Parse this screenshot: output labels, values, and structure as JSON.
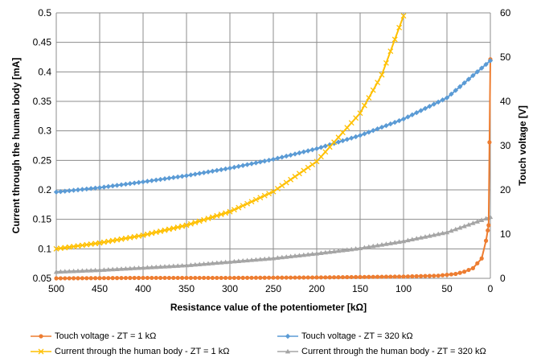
{
  "chart_data": {
    "type": "line",
    "xlabel": "Resistance value of the potentiometer [kΩ]",
    "ylabel_left": "Current  through the human body [mA]",
    "ylabel_right": "Touch voltage [V]",
    "xlim": [
      500,
      0
    ],
    "ylim_left": [
      0.05,
      0.5
    ],
    "ylim_right": [
      0,
      60
    ],
    "x_ticks": [
      "500",
      "450",
      "400",
      "350",
      "300",
      "250",
      "200",
      "150",
      "100",
      "50",
      "0"
    ],
    "y_left_ticks": [
      "0.05",
      "0.1",
      "0.15",
      "0.2",
      "0.25",
      "0.3",
      "0.35",
      "0.4",
      "0.45",
      "0.5"
    ],
    "y_right_ticks": [
      "0",
      "10",
      "20",
      "30",
      "40",
      "50",
      "60"
    ],
    "grid": true,
    "legend_position": "bottom",
    "series": [
      {
        "name": "Touch voltage - ZT = 1 kΩ",
        "axis": "right",
        "color": "#ed7d31",
        "marker": "circle",
        "x": [
          500,
          400,
          300,
          200,
          150,
          100,
          80,
          60,
          50,
          40,
          30,
          20,
          10,
          5,
          2,
          0
        ],
        "y": [
          0.0,
          0.1,
          0.1,
          0.2,
          0.3,
          0.4,
          0.5,
          0.6,
          0.8,
          1.0,
          1.5,
          2.3,
          4.5,
          8.5,
          12.0,
          49.5
        ]
      },
      {
        "name": "Touch voltage - ZT = 320 kΩ",
        "axis": "right",
        "color": "#5b9bd5",
        "marker": "diamond",
        "x": [
          500,
          450,
          400,
          350,
          300,
          250,
          200,
          150,
          100,
          50,
          0
        ],
        "y": [
          19.5,
          20.5,
          21.8,
          23.2,
          24.9,
          26.9,
          29.3,
          32.3,
          36.0,
          40.8,
          49.2
        ]
      },
      {
        "name": "Current through the human body - ZT = 1 kΩ",
        "axis": "left",
        "color": "#ffc000",
        "marker": "x",
        "x": [
          500,
          450,
          400,
          350,
          300,
          250,
          200,
          150,
          125,
          100
        ],
        "y": [
          0.1,
          0.11,
          0.123,
          0.14,
          0.163,
          0.197,
          0.248,
          0.33,
          0.395,
          0.495
        ]
      },
      {
        "name": "Current through the human body - ZT = 320 kΩ",
        "axis": "left",
        "color": "#a5a5a5",
        "marker": "triangle",
        "x": [
          500,
          450,
          400,
          350,
          300,
          250,
          200,
          150,
          100,
          50,
          0
        ],
        "y": [
          0.061,
          0.064,
          0.068,
          0.072,
          0.078,
          0.084,
          0.092,
          0.101,
          0.113,
          0.128,
          0.154
        ]
      }
    ]
  }
}
